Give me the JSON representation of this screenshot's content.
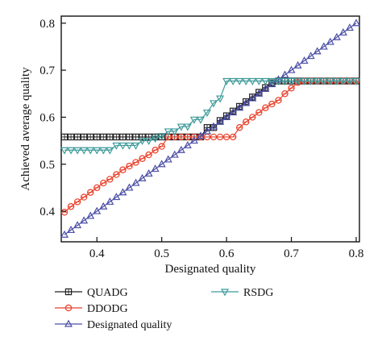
{
  "chart_data": {
    "type": "line",
    "xlabel": "Designated quality",
    "ylabel": "Achieved average quality",
    "xlim": [
      0.345,
      0.805
    ],
    "ylim": [
      0.335,
      0.815
    ],
    "xticks": [
      0.4,
      0.5,
      0.6,
      0.7,
      0.8
    ],
    "xtick_labels": [
      "0.4",
      "0.5",
      "0.6",
      "0.7",
      "0.8"
    ],
    "yticks": [
      0.4,
      0.5,
      0.6,
      0.7,
      0.8
    ],
    "ytick_labels": [
      "0.4",
      "0.5",
      "0.6",
      "0.7",
      "0.8"
    ],
    "grid": false,
    "legend_position": "bottom",
    "x": [
      0.35,
      0.36,
      0.37,
      0.38,
      0.39,
      0.4,
      0.41,
      0.42,
      0.43,
      0.44,
      0.45,
      0.46,
      0.47,
      0.48,
      0.49,
      0.5,
      0.51,
      0.52,
      0.53,
      0.54,
      0.55,
      0.56,
      0.57,
      0.58,
      0.59,
      0.6,
      0.61,
      0.62,
      0.63,
      0.64,
      0.65,
      0.66,
      0.67,
      0.68,
      0.69,
      0.7,
      0.71,
      0.72,
      0.73,
      0.74,
      0.75,
      0.76,
      0.77,
      0.78,
      0.79,
      0.8
    ],
    "series": [
      {
        "name": "QUADG",
        "color": "#222222",
        "marker": "square",
        "values": [
          0.558,
          0.558,
          0.558,
          0.558,
          0.558,
          0.558,
          0.558,
          0.558,
          0.558,
          0.558,
          0.558,
          0.558,
          0.558,
          0.558,
          0.558,
          0.558,
          0.558,
          0.558,
          0.558,
          0.558,
          0.558,
          0.558,
          0.578,
          0.578,
          0.593,
          0.603,
          0.613,
          0.623,
          0.633,
          0.643,
          0.653,
          0.663,
          0.673,
          0.677,
          0.677,
          0.677,
          0.677,
          0.677,
          0.677,
          0.677,
          0.677,
          0.677,
          0.677,
          0.677,
          0.677,
          0.677
        ]
      },
      {
        "name": "DDODG",
        "color": "#e8402a",
        "marker": "circle",
        "values": [
          0.398,
          0.41,
          0.42,
          0.43,
          0.44,
          0.45,
          0.46,
          0.468,
          0.478,
          0.488,
          0.496,
          0.504,
          0.512,
          0.52,
          0.53,
          0.538,
          0.558,
          0.558,
          0.558,
          0.558,
          0.558,
          0.558,
          0.558,
          0.558,
          0.558,
          0.558,
          0.558,
          0.578,
          0.59,
          0.6,
          0.61,
          0.62,
          0.628,
          0.636,
          0.65,
          0.662,
          0.674,
          0.677,
          0.677,
          0.677,
          0.677,
          0.677,
          0.677,
          0.677,
          0.677,
          0.677
        ]
      },
      {
        "name": "Designated quality",
        "color": "#4b4fa6",
        "marker": "triangle-up",
        "values": [
          0.35,
          0.36,
          0.37,
          0.38,
          0.39,
          0.4,
          0.41,
          0.42,
          0.43,
          0.44,
          0.45,
          0.46,
          0.47,
          0.48,
          0.49,
          0.5,
          0.51,
          0.52,
          0.53,
          0.54,
          0.55,
          0.56,
          0.57,
          0.58,
          0.59,
          0.6,
          0.61,
          0.62,
          0.63,
          0.64,
          0.65,
          0.66,
          0.67,
          0.68,
          0.69,
          0.7,
          0.71,
          0.72,
          0.73,
          0.74,
          0.75,
          0.76,
          0.77,
          0.78,
          0.79,
          0.8
        ]
      },
      {
        "name": "RSDG",
        "color": "#3f9a9a",
        "marker": "triangle-down",
        "values": [
          0.53,
          0.53,
          0.53,
          0.53,
          0.53,
          0.53,
          0.53,
          0.53,
          0.54,
          0.54,
          0.54,
          0.54,
          0.55,
          0.55,
          0.555,
          0.56,
          0.57,
          0.57,
          0.58,
          0.58,
          0.595,
          0.595,
          0.61,
          0.63,
          0.64,
          0.677,
          0.677,
          0.677,
          0.677,
          0.677,
          0.677,
          0.677,
          0.677,
          0.677,
          0.677,
          0.677,
          0.677,
          0.677,
          0.677,
          0.677,
          0.677,
          0.677,
          0.677,
          0.677,
          0.677,
          0.677
        ]
      }
    ]
  }
}
